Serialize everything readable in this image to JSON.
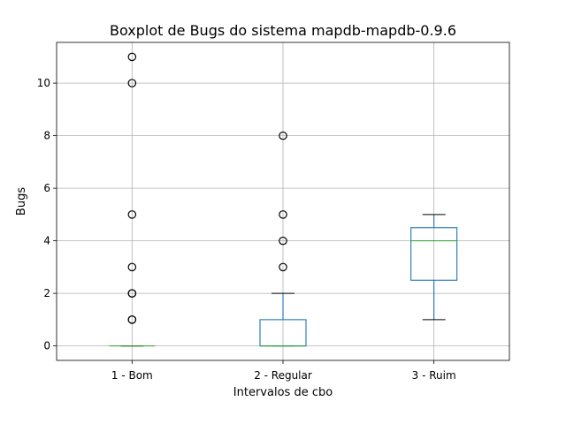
{
  "chart_data": {
    "type": "boxplot",
    "title": "Boxplot de Bugs do sistema mapdb-mapdb-0.9.6",
    "xlabel": "Intervalos de cbo",
    "ylabel": "Bugs",
    "categories": [
      "1 - Bom",
      "2 - Regular",
      "3 - Ruim"
    ],
    "ylim": [
      -0.55,
      11.55
    ],
    "yticks": [
      0,
      2,
      4,
      6,
      8,
      10
    ],
    "grid": true,
    "boxes": [
      {
        "category": "1 - Bom",
        "whisker_low": 0,
        "q1": 0,
        "median": 0,
        "q3": 0,
        "whisker_high": 0,
        "outliers": [
          1,
          1,
          2,
          2,
          3,
          5,
          10,
          11
        ]
      },
      {
        "category": "2 - Regular",
        "whisker_low": 0,
        "q1": 0,
        "median": 0,
        "q3": 1,
        "whisker_high": 2,
        "outliers": [
          3,
          4,
          5,
          8
        ]
      },
      {
        "category": "3 - Ruim",
        "whisker_low": 1,
        "q1": 2.5,
        "median": 4,
        "q3": 4.5,
        "whisker_high": 5,
        "outliers": []
      }
    ],
    "colors": {
      "box": "#1f77b4",
      "median": "#2ca02c",
      "whisker": "#000000",
      "outlier": "#000000"
    }
  }
}
